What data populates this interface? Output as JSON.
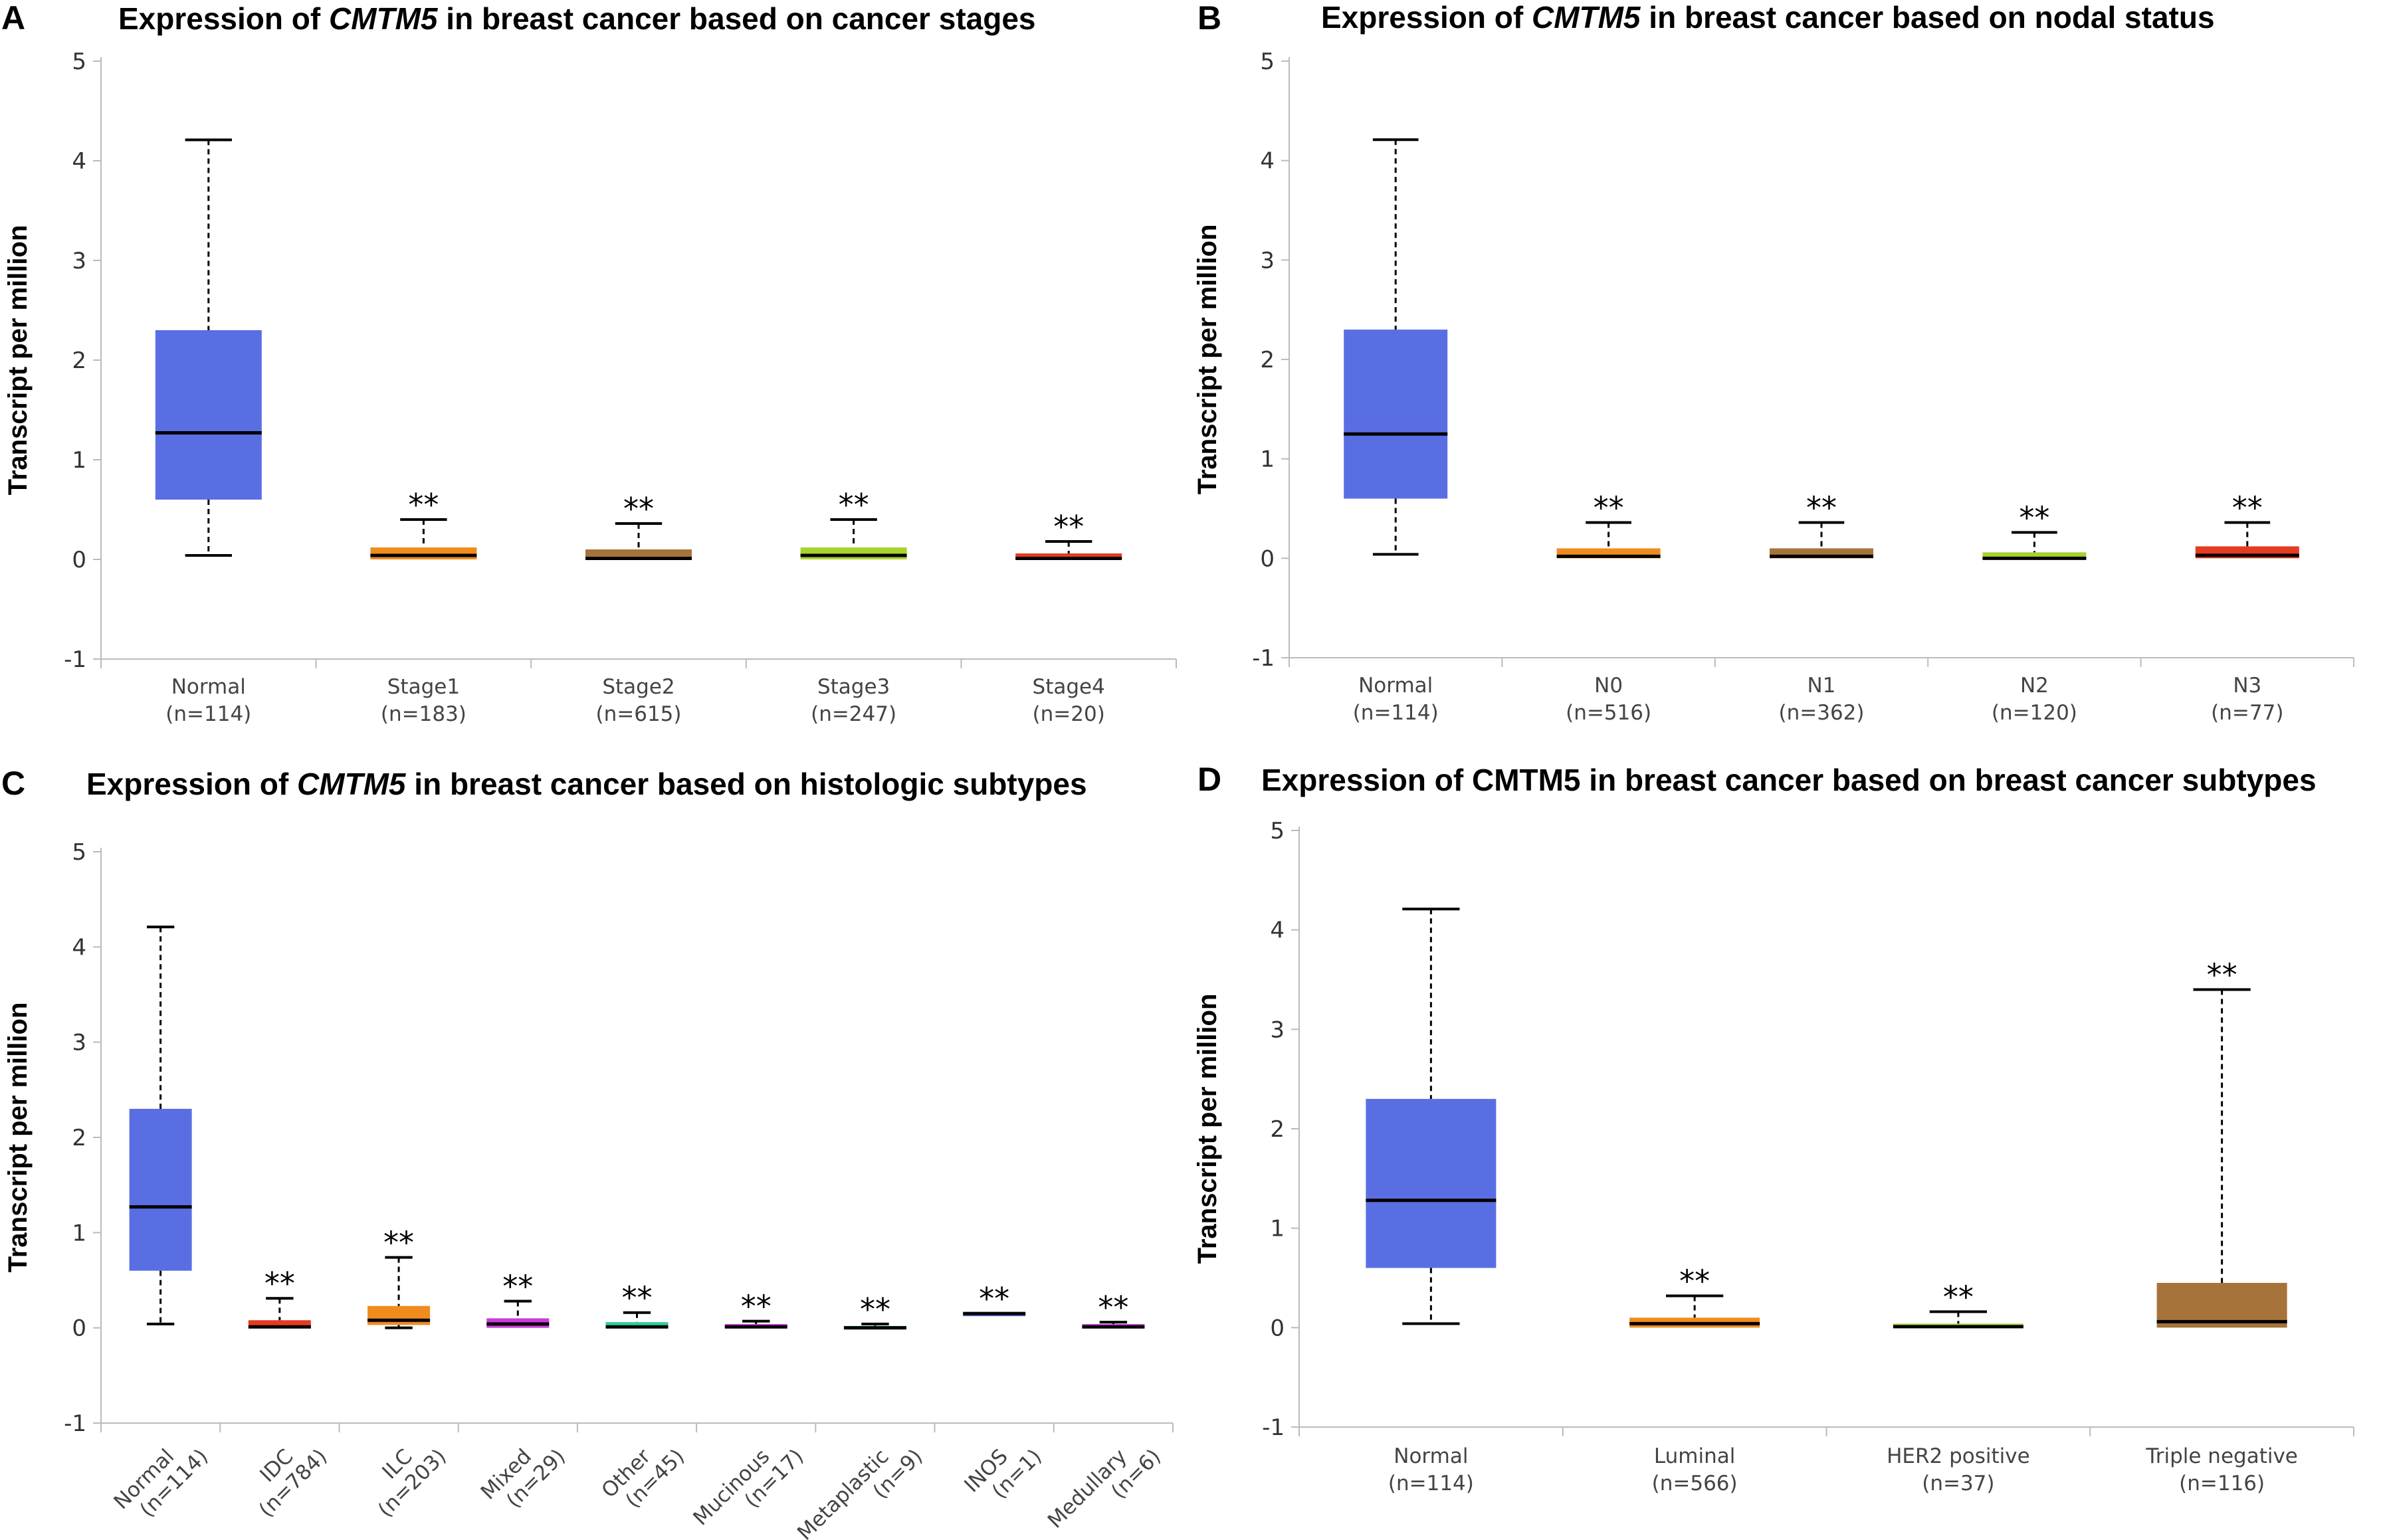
{
  "chart_data": [
    {
      "type": "box",
      "panel_label": "A",
      "title_pre": "Expression of ",
      "title_gene": "CMTM5",
      "gene_italic": true,
      "title_post": " in breast cancer based on cancer stages",
      "ylabel": "Transcript per million",
      "ylim": [
        -1,
        5
      ],
      "yticks": [
        -1,
        0,
        1,
        2,
        3,
        4,
        5
      ],
      "rotate_x": false,
      "boxes": [
        {
          "name": "Normal",
          "n": "(n=114)",
          "color": "#5a6ee3",
          "whislo": 0.04,
          "q1": 0.6,
          "med": 1.27,
          "q3": 2.3,
          "whishi": 4.21,
          "sig": ""
        },
        {
          "name": "Stage1",
          "n": "(n=183)",
          "color": "#f08c1e",
          "whislo": 0.0,
          "q1": 0.0,
          "med": 0.04,
          "q3": 0.12,
          "whishi": 0.4,
          "sig": "**"
        },
        {
          "name": "Stage2",
          "n": "(n=615)",
          "color": "#a6733a",
          "whislo": 0.0,
          "q1": 0.0,
          "med": 0.01,
          "q3": 0.1,
          "whishi": 0.36,
          "sig": "**"
        },
        {
          "name": "Stage3",
          "n": "(n=247)",
          "color": "#a8d22e",
          "whislo": 0.0,
          "q1": 0.0,
          "med": 0.04,
          "q3": 0.12,
          "whishi": 0.4,
          "sig": "**"
        },
        {
          "name": "Stage4",
          "n": "(n=20)",
          "color": "#e53b22",
          "whislo": 0.0,
          "q1": 0.0,
          "med": 0.01,
          "q3": 0.06,
          "whishi": 0.18,
          "sig": "**"
        }
      ]
    },
    {
      "type": "box",
      "panel_label": "B",
      "title_pre": "Expression of ",
      "title_gene": "CMTM5",
      "gene_italic": true,
      "title_post": " in breast cancer based on nodal status",
      "ylabel": "Transcript per million",
      "ylim": [
        -1,
        5
      ],
      "yticks": [
        -1,
        0,
        1,
        2,
        3,
        4,
        5
      ],
      "rotate_x": false,
      "boxes": [
        {
          "name": "Normal",
          "n": "(n=114)",
          "color": "#5a6ee3",
          "whislo": 0.04,
          "q1": 0.6,
          "med": 1.25,
          "q3": 2.3,
          "whishi": 4.21,
          "sig": ""
        },
        {
          "name": "N0",
          "n": "(n=516)",
          "color": "#f08c1e",
          "whislo": 0.0,
          "q1": 0.0,
          "med": 0.02,
          "q3": 0.1,
          "whishi": 0.36,
          "sig": "**"
        },
        {
          "name": "N1",
          "n": "(n=362)",
          "color": "#a6733a",
          "whislo": 0.0,
          "q1": 0.0,
          "med": 0.02,
          "q3": 0.1,
          "whishi": 0.36,
          "sig": "**"
        },
        {
          "name": "N2",
          "n": "(n=120)",
          "color": "#a8d22e",
          "whislo": 0.0,
          "q1": 0.0,
          "med": 0.0,
          "q3": 0.06,
          "whishi": 0.26,
          "sig": "**"
        },
        {
          "name": "N3",
          "n": "(n=77)",
          "color": "#e53b22",
          "whislo": 0.0,
          "q1": 0.0,
          "med": 0.03,
          "q3": 0.12,
          "whishi": 0.36,
          "sig": "**"
        }
      ]
    },
    {
      "type": "box",
      "panel_label": "C",
      "title_pre": "Expression of ",
      "title_gene": "CMTM5",
      "gene_italic": true,
      "title_post": " in breast cancer based on histologic subtypes",
      "ylabel": "Transcript per million",
      "ylim": [
        -1,
        5
      ],
      "yticks": [
        -1,
        0,
        1,
        2,
        3,
        4,
        5
      ],
      "rotate_x": true,
      "boxes": [
        {
          "name": "Normal",
          "n": "(n=114)",
          "color": "#5a6ee3",
          "whislo": 0.04,
          "q1": 0.6,
          "med": 1.27,
          "q3": 2.3,
          "whishi": 4.21,
          "sig": ""
        },
        {
          "name": "IDC",
          "n": "(n=784)",
          "color": "#e53b22",
          "whislo": 0.0,
          "q1": 0.0,
          "med": 0.01,
          "q3": 0.08,
          "whishi": 0.31,
          "sig": "**"
        },
        {
          "name": "ILC",
          "n": "(n=203)",
          "color": "#f08c1e",
          "whislo": 0.0,
          "q1": 0.03,
          "med": 0.08,
          "q3": 0.23,
          "whishi": 0.74,
          "sig": "**"
        },
        {
          "name": "Mixed",
          "n": "(n=29)",
          "color": "#cc3ad9",
          "whislo": 0.0,
          "q1": 0.0,
          "med": 0.04,
          "q3": 0.1,
          "whishi": 0.28,
          "sig": "**"
        },
        {
          "name": "Other",
          "n": "(n=45)",
          "color": "#2ecf9a",
          "whislo": 0.0,
          "q1": 0.0,
          "med": 0.01,
          "q3": 0.06,
          "whishi": 0.16,
          "sig": "**"
        },
        {
          "name": "Mucinous",
          "n": "(n=17)",
          "color": "#cc3ad9",
          "whislo": 0.0,
          "q1": 0.0,
          "med": 0.01,
          "q3": 0.04,
          "whishi": 0.07,
          "sig": "**"
        },
        {
          "name": "Metaplastic",
          "n": "(n=9)",
          "color": "#2ecf9a",
          "whislo": 0.0,
          "q1": 0.0,
          "med": 0.0,
          "q3": 0.02,
          "whishi": 0.04,
          "sig": "**"
        },
        {
          "name": "INOS",
          "n": "(n=1)",
          "color": "#5a6ee3",
          "whislo": 0.15,
          "q1": 0.15,
          "med": 0.15,
          "q3": 0.15,
          "whishi": 0.15,
          "sig": "**"
        },
        {
          "name": "Medullary",
          "n": "(n=6)",
          "color": "#cc3ad9",
          "whislo": 0.0,
          "q1": 0.0,
          "med": 0.01,
          "q3": 0.04,
          "whishi": 0.06,
          "sig": "**"
        }
      ]
    },
    {
      "type": "box",
      "panel_label": "D",
      "title_pre": "Expression of ",
      "title_gene": "CMTM5",
      "gene_italic": false,
      "title_post": " in breast cancer based on breast cancer subtypes",
      "ylabel": "Transcript per million",
      "ylim": [
        -1,
        5
      ],
      "yticks": [
        -1,
        0,
        1,
        2,
        3,
        4,
        5
      ],
      "rotate_x": false,
      "boxes": [
        {
          "name": "Normal",
          "n": "(n=114)",
          "color": "#5a6ee3",
          "whislo": 0.04,
          "q1": 0.6,
          "med": 1.28,
          "q3": 2.3,
          "whishi": 4.21,
          "sig": ""
        },
        {
          "name": "Luminal",
          "n": "(n=566)",
          "color": "#f08c1e",
          "whislo": 0.0,
          "q1": 0.0,
          "med": 0.04,
          "q3": 0.1,
          "whishi": 0.32,
          "sig": "**"
        },
        {
          "name": "HER2 positive",
          "n": "(n=37)",
          "color": "#a8d22e",
          "whislo": 0.0,
          "q1": 0.0,
          "med": 0.01,
          "q3": 0.04,
          "whishi": 0.16,
          "sig": "**"
        },
        {
          "name": "Triple negative",
          "n": "(n=116)",
          "color": "#a6733a",
          "whislo": 0.0,
          "q1": 0.0,
          "med": 0.06,
          "q3": 0.45,
          "whishi": 3.4,
          "sig": "**"
        }
      ]
    }
  ]
}
